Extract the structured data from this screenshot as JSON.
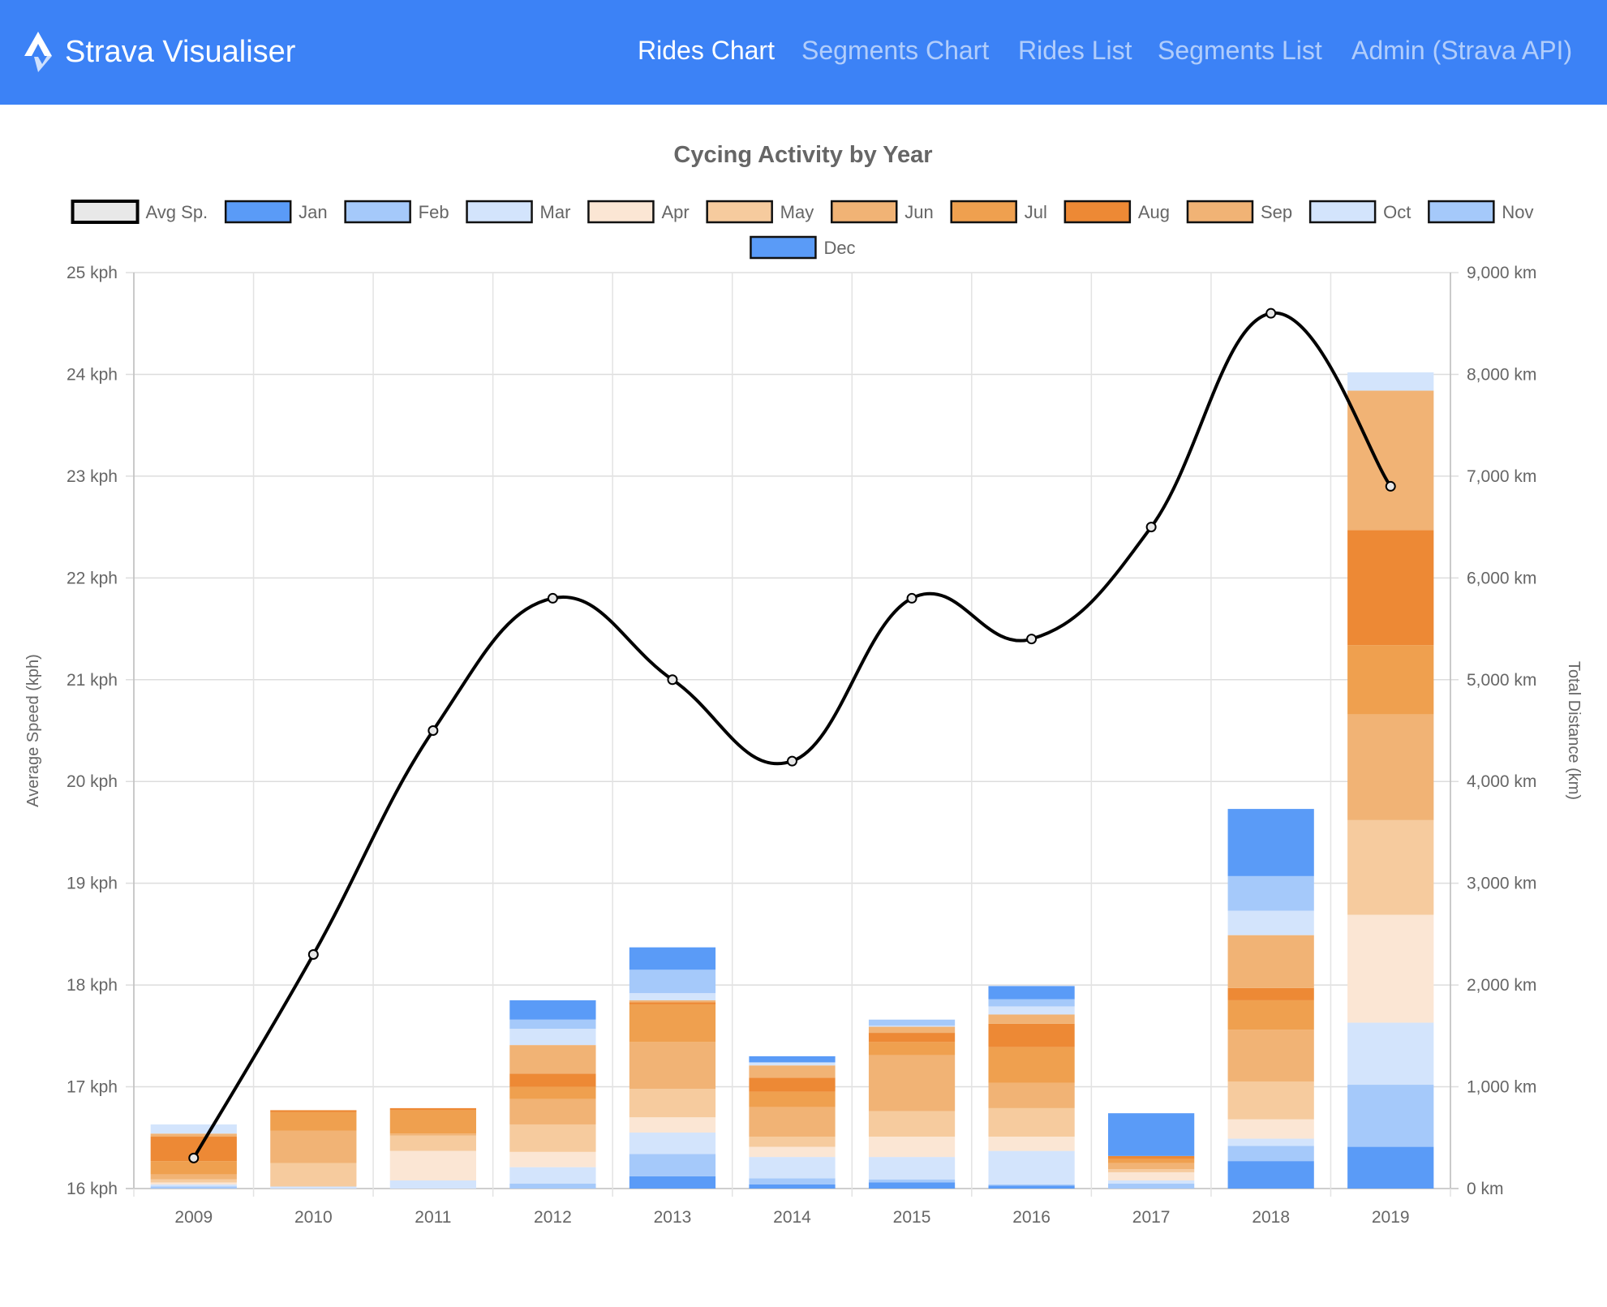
{
  "app": {
    "title": "Strava Visualiser",
    "logo_icon": "strava-chevrons-icon",
    "accent_color": "#3c82f6"
  },
  "nav": {
    "items": [
      {
        "label": "Rides Chart",
        "active": true
      },
      {
        "label": "Segments Chart",
        "active": false
      },
      {
        "label": "Rides List",
        "active": false
      },
      {
        "label": "Segments List",
        "active": false
      },
      {
        "label": "Admin (Strava API)",
        "active": false
      }
    ]
  },
  "chart_data": {
    "type": "bar",
    "title": "Cycing Activity by Year",
    "categories": [
      "2009",
      "2010",
      "2011",
      "2012",
      "2013",
      "2014",
      "2015",
      "2016",
      "2017",
      "2018",
      "2019"
    ],
    "y_left": {
      "label": "Average Speed (kph)",
      "ticks": [
        "16 kph",
        "17 kph",
        "18 kph",
        "19 kph",
        "20 kph",
        "21 kph",
        "22 kph",
        "23 kph",
        "24 kph",
        "25 kph"
      ],
      "range": [
        16,
        25
      ]
    },
    "y_right": {
      "label": "Total Distance (km)",
      "ticks": [
        "0 km",
        "1,000 km",
        "2,000 km",
        "3,000 km",
        "4,000 km",
        "5,000 km",
        "6,000 km",
        "7,000 km",
        "8,000 km",
        "9,000 km"
      ],
      "range": [
        0,
        9000
      ]
    },
    "grid": true,
    "legend_position": "top",
    "line_series": {
      "name": "Avg Sp.",
      "axis": "left",
      "color": "#000000",
      "fill": "#e8e8e8",
      "values": [
        16.3,
        18.3,
        20.5,
        21.8,
        21.0,
        20.2,
        21.8,
        21.4,
        22.5,
        24.6,
        22.9
      ]
    },
    "bar_series": [
      {
        "name": "Jan",
        "color": "#5a9bf7",
        "values": [
          0,
          0,
          0,
          0,
          120,
          40,
          60,
          30,
          0,
          270,
          410
        ]
      },
      {
        "name": "Feb",
        "color": "#a5c9fa",
        "values": [
          20,
          0,
          0,
          50,
          220,
          60,
          30,
          10,
          50,
          150,
          610
        ]
      },
      {
        "name": "Mar",
        "color": "#d3e4fc",
        "values": [
          20,
          20,
          80,
          160,
          210,
          210,
          220,
          330,
          30,
          70,
          610
        ]
      },
      {
        "name": "Apr",
        "color": "#fbe6d4",
        "values": [
          20,
          0,
          290,
          150,
          150,
          100,
          200,
          140,
          80,
          190,
          1060
        ]
      },
      {
        "name": "May",
        "color": "#f6cb9e",
        "values": [
          30,
          230,
          150,
          270,
          280,
          100,
          250,
          280,
          30,
          370,
          930
        ]
      },
      {
        "name": "Jun",
        "color": "#f1b375",
        "values": [
          50,
          320,
          20,
          250,
          460,
          290,
          550,
          250,
          60,
          510,
          1040
        ]
      },
      {
        "name": "Jul",
        "color": "#efa04f",
        "values": [
          130,
          180,
          230,
          120,
          370,
          150,
          130,
          350,
          40,
          290,
          680
        ]
      },
      {
        "name": "Aug",
        "color": "#ed8935",
        "values": [
          240,
          20,
          20,
          130,
          20,
          140,
          90,
          230,
          30,
          120,
          1130
        ]
      },
      {
        "name": "Sep",
        "color": "#f1b375",
        "values": [
          30,
          0,
          0,
          280,
          20,
          120,
          60,
          90,
          0,
          520,
          1370
        ]
      },
      {
        "name": "Oct",
        "color": "#d3e4fc",
        "values": [
          90,
          0,
          0,
          160,
          70,
          30,
          10,
          80,
          0,
          240,
          180
        ]
      },
      {
        "name": "Nov",
        "color": "#a5c9fa",
        "values": [
          0,
          0,
          0,
          90,
          230,
          0,
          60,
          70,
          0,
          340,
          0
        ]
      },
      {
        "name": "Dec",
        "color": "#5a9bf7",
        "values": [
          0,
          0,
          0,
          190,
          220,
          60,
          0,
          130,
          420,
          660,
          0
        ]
      }
    ]
  }
}
